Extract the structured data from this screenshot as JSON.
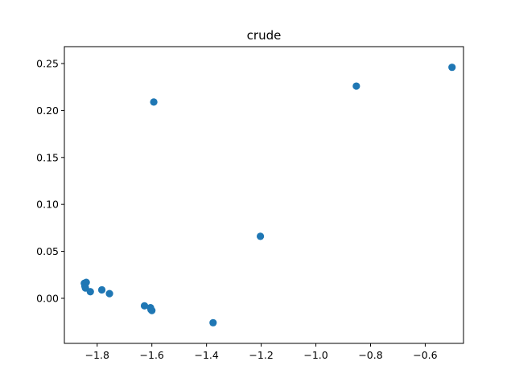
{
  "chart_data": {
    "type": "scatter",
    "title": "crude",
    "xlabel": "",
    "ylabel": "",
    "xlim": [
      -1.92,
      -0.46
    ],
    "ylim": [
      -0.048,
      0.268
    ],
    "xticks": [
      -1.8,
      -1.6,
      -1.4,
      -1.2,
      -1.0,
      -0.8,
      -0.6
    ],
    "xtick_labels": [
      "−1.8",
      "−1.6",
      "−1.4",
      "−1.2",
      "−1.0",
      "−0.8",
      "−0.6"
    ],
    "yticks": [
      0.0,
      0.05,
      0.1,
      0.15,
      0.2,
      0.25
    ],
    "ytick_labels": [
      "0.00",
      "0.05",
      "0.10",
      "0.15",
      "0.20",
      "0.25"
    ],
    "grid": false,
    "color": "#1f77b4",
    "series": [
      {
        "x": [
          -1.847,
          -1.84,
          -1.845,
          -1.843,
          -1.825,
          -1.783,
          -1.755,
          -1.627,
          -1.605,
          -1.603,
          -1.6,
          -1.593,
          -1.376,
          -1.203,
          -0.852,
          -0.502
        ],
        "y": [
          0.016,
          0.017,
          0.013,
          0.011,
          0.007,
          0.009,
          0.005,
          -0.008,
          -0.01,
          -0.012,
          -0.013,
          0.209,
          -0.026,
          0.066,
          0.226,
          0.246
        ]
      }
    ]
  }
}
